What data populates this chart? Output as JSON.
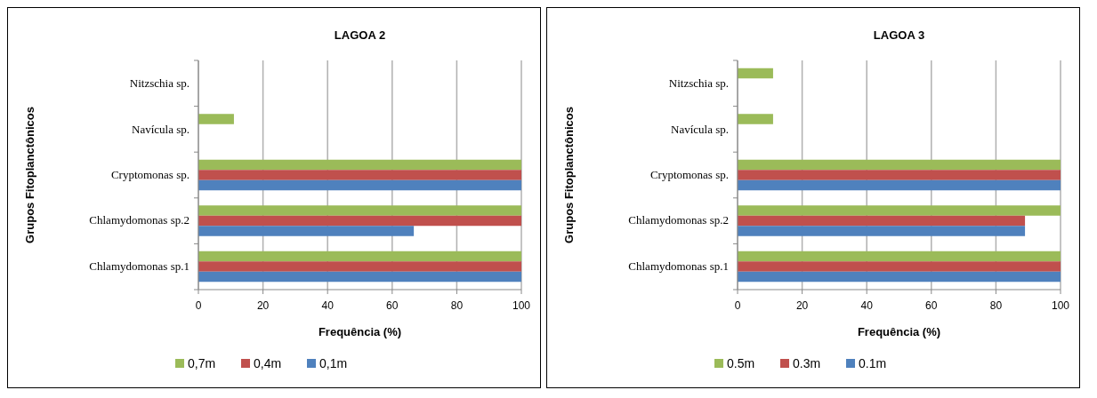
{
  "chart_data": [
    {
      "type": "bar",
      "orientation": "horizontal",
      "title": "LAGOA 2",
      "xlabel": "Frequência (%)",
      "ylabel": "Grupos Fitoplanctônicos",
      "categories": [
        "Nitzschia sp.",
        "Navícula sp.",
        "Cryptomonas sp.",
        "Chlamydomonas sp.2",
        "Chlamydomonas sp.1"
      ],
      "xlim": [
        0,
        100
      ],
      "xticks": [
        0,
        20,
        40,
        60,
        80,
        100
      ],
      "grid": "x",
      "legend": "bottom",
      "series": [
        {
          "name": "0,7m",
          "color": "#9bbb59",
          "values": [
            null,
            11,
            100,
            100,
            100
          ]
        },
        {
          "name": "0,4m",
          "color": "#c0504d",
          "values": [
            null,
            null,
            100,
            100,
            100
          ]
        },
        {
          "name": "0,1m",
          "color": "#4f81bd",
          "values": [
            null,
            null,
            100,
            66.7,
            100
          ]
        }
      ]
    },
    {
      "type": "bar",
      "orientation": "horizontal",
      "title": "LAGOA 3",
      "xlabel": "Frequência (%)",
      "ylabel": "Grupos Fitoplanctônicos",
      "categories": [
        "Nitzschia sp.",
        "Navícula sp.",
        "Cryptomonas sp.",
        "Chlamydomonas sp.2",
        "Chlamydomonas sp.1"
      ],
      "xlim": [
        0,
        100
      ],
      "xticks": [
        0,
        20,
        40,
        60,
        80,
        100
      ],
      "grid": "x",
      "legend": "bottom",
      "series": [
        {
          "name": "0.5m",
          "color": "#9bbb59",
          "values": [
            11,
            11,
            100,
            100,
            100
          ]
        },
        {
          "name": "0.3m",
          "color": "#c0504d",
          "values": [
            null,
            null,
            100,
            89,
            100
          ]
        },
        {
          "name": "0.1m",
          "color": "#4f81bd",
          "values": [
            null,
            null,
            100,
            89,
            100
          ]
        }
      ]
    }
  ]
}
